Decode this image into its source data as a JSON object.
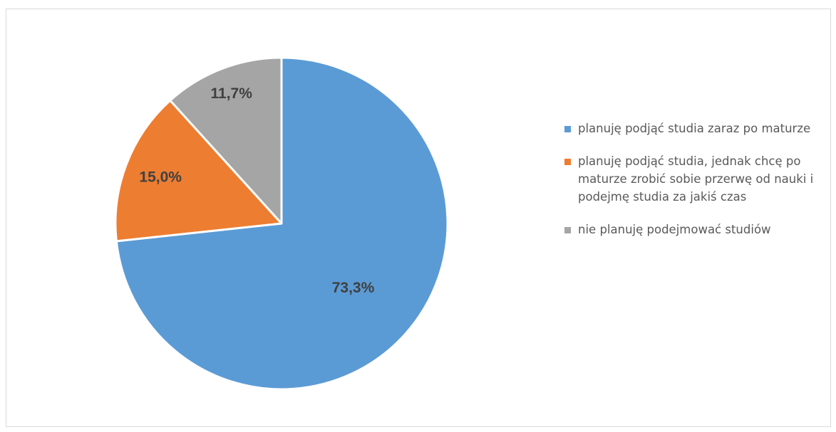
{
  "chart_data": {
    "type": "pie",
    "title": "",
    "slices": [
      {
        "label": "planuję podjąć studia zaraz po maturze",
        "value": 73.3,
        "value_label": "73,3%",
        "color": "#5B9BD5"
      },
      {
        "label": "planuję podjąć studia, jednak chcę po maturze zrobić sobie przerwę od nauki i podejmę studia za jakiś czas",
        "value": 15.0,
        "value_label": "15,0%",
        "color": "#ED7D31"
      },
      {
        "label": "nie planuję podejmować studiów",
        "value": 11.7,
        "value_label": "11,7%",
        "color": "#A5A5A5"
      }
    ],
    "legend_position": "right",
    "start_angle_deg": 0,
    "direction": "clockwise"
  }
}
